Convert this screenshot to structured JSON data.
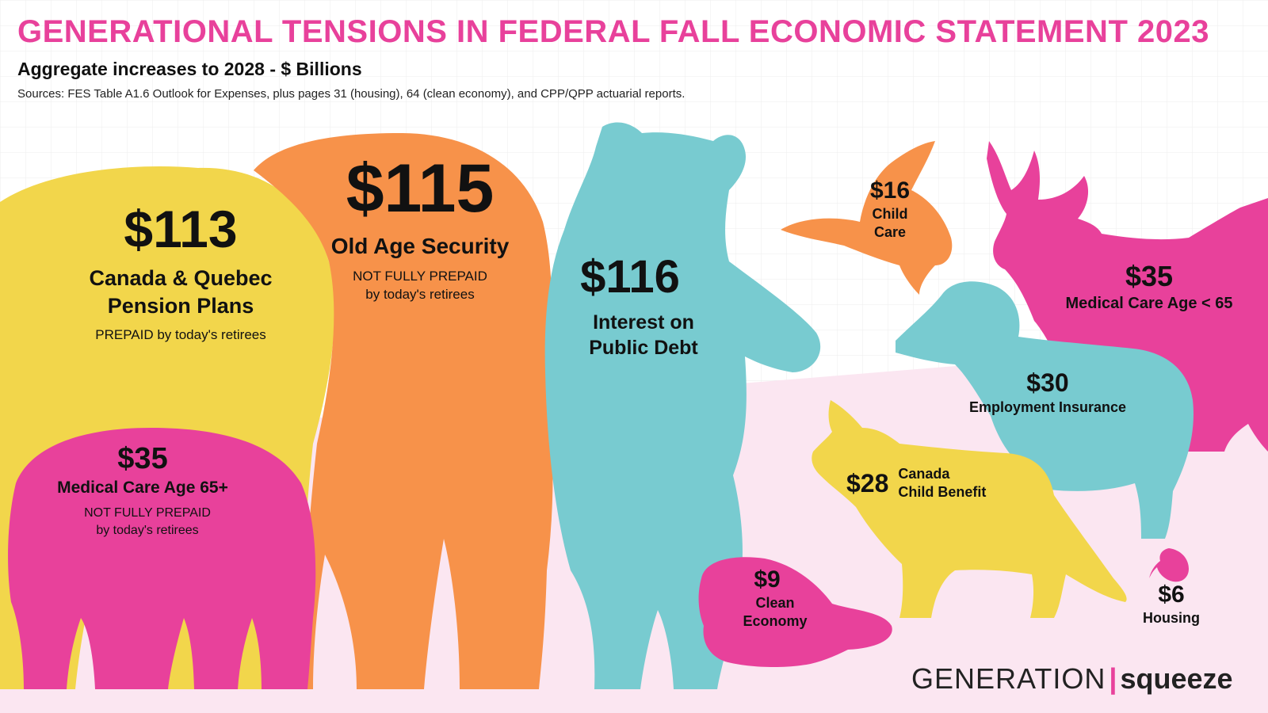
{
  "title": "GENERATIONAL TENSIONS IN FEDERAL FALL ECONOMIC STATEMENT 2023",
  "subtitle": "Aggregate increases to 2028 - $ Billions",
  "sources": "Sources: FES Table A1.6 Outlook for Expenses, plus pages 31 (housing), 64 (clean economy), and CPP/QPP actuarial reports.",
  "logo": {
    "part1": "GENERATION",
    "separator": "|",
    "part2": "squeeze"
  },
  "colors": {
    "title": "#e8419b",
    "yellow": "#f2d64b",
    "orange": "#f7924a",
    "teal": "#78cbd0",
    "pink": "#e8419b",
    "background_pink": "#fbe6f1"
  },
  "chart_data": {
    "type": "pictograph",
    "title": "GENERATIONAL TENSIONS IN FEDERAL FALL ECONOMIC STATEMENT 2023",
    "unit": "$ Billions",
    "items": [
      {
        "value_label": "$113",
        "value": 113,
        "label": [
          "Canada & Quebec",
          "Pension Plans"
        ],
        "note": [
          "PREPAID by today's retirees"
        ],
        "color": "#f2d64b",
        "icon": "elephant-icon"
      },
      {
        "value_label": "$115",
        "value": 115,
        "label": [
          "Old Age Security"
        ],
        "note": [
          "NOT FULLY PREPAID",
          "by today's retirees"
        ],
        "color": "#f7924a",
        "icon": "elephant-icon"
      },
      {
        "value_label": "$116",
        "value": 116,
        "label": [
          "Interest on",
          "Public Debt"
        ],
        "note": [],
        "color": "#78cbd0",
        "icon": "bear-icon"
      },
      {
        "value_label": "$35",
        "value": 35,
        "label": [
          "Medical Care Age 65+"
        ],
        "note": [
          "NOT FULLY PREPAID",
          "by today's retirees"
        ],
        "color": "#e8419b",
        "icon": "elephant-calf-icon"
      },
      {
        "value_label": "$16",
        "value": 16,
        "label": [
          "Child",
          "Care"
        ],
        "note": [],
        "color": "#f7924a",
        "icon": "goose-icon"
      },
      {
        "value_label": "$35",
        "value": 35,
        "label": [
          "Medical Care Age < 65"
        ],
        "note": [],
        "color": "#e8419b",
        "icon": "moose-icon"
      },
      {
        "value_label": "$30",
        "value": 30,
        "label": [
          "Employment Insurance"
        ],
        "note": [],
        "color": "#78cbd0",
        "icon": "ram-icon"
      },
      {
        "value_label": "$28",
        "value": 28,
        "label": [
          "Canada",
          "Child Benefit"
        ],
        "note": [],
        "color": "#f2d64b",
        "icon": "fox-icon"
      },
      {
        "value_label": "$9",
        "value": 9,
        "label": [
          "Clean",
          "Economy"
        ],
        "note": [],
        "color": "#e8419b",
        "icon": "beaver-icon"
      },
      {
        "value_label": "$6",
        "value": 6,
        "label": [
          "Housing"
        ],
        "note": [],
        "color": "#e8419b",
        "icon": "squirrel-icon"
      }
    ]
  }
}
